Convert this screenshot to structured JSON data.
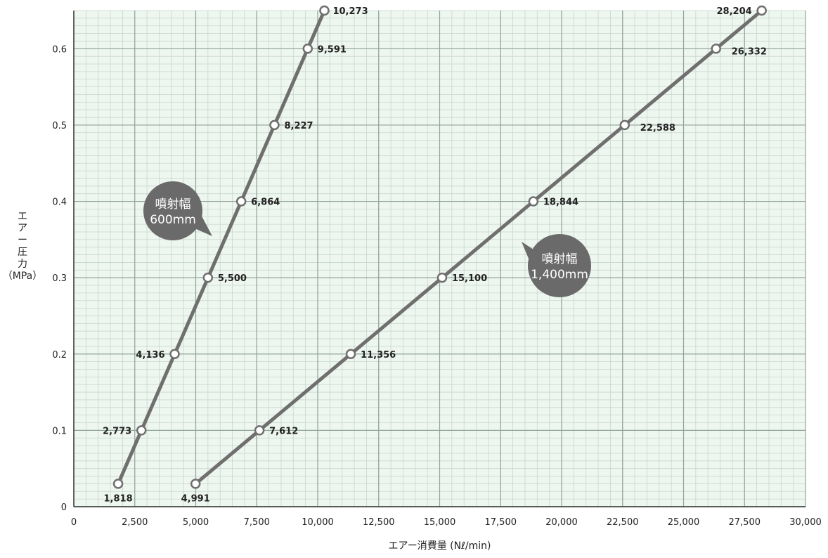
{
  "chart_data": {
    "type": "line",
    "xlabel": "エアー消費量 (Nℓ/min)",
    "ylabel_lines": [
      "エ",
      "ア",
      "ー",
      "圧",
      "力",
      "（MPa）"
    ],
    "xlim": [
      0,
      30000
    ],
    "ylim": [
      0,
      0.65
    ],
    "x_ticks": [
      0,
      2500,
      5000,
      7500,
      10000,
      12500,
      15000,
      17500,
      20000,
      22500,
      25000,
      27500,
      30000
    ],
    "x_tick_labels": [
      "0",
      "2,500",
      "5,000",
      "7,500",
      "10,000",
      "12,500",
      "15,000",
      "17,500",
      "20,000",
      "22,500",
      "25,000",
      "27,500",
      "30,000"
    ],
    "y_ticks": [
      0,
      0.1,
      0.2,
      0.3,
      0.4,
      0.5,
      0.6
    ],
    "y_tick_labels": [
      "0",
      "0.1",
      "0.2",
      "0.3",
      "0.4",
      "0.5",
      "0.6"
    ],
    "grid": true,
    "colors": {
      "line": "#6f6f6f",
      "grid_major": "#8fa39a",
      "grid_minor": "#c6d6cc",
      "background": "#eef6f0",
      "bubble": "#6a6a6a"
    },
    "series": [
      {
        "name": "噴射幅 600mm",
        "label_lines": [
          "噴射幅",
          "600mm"
        ],
        "points": [
          {
            "x": 1818,
            "y": 0.03,
            "label": "1,818"
          },
          {
            "x": 2773,
            "y": 0.1,
            "label": "2,773"
          },
          {
            "x": 4136,
            "y": 0.2,
            "label": "4,136"
          },
          {
            "x": 5500,
            "y": 0.3,
            "label": "5,500"
          },
          {
            "x": 6864,
            "y": 0.4,
            "label": "6,864"
          },
          {
            "x": 8227,
            "y": 0.5,
            "label": "8,227"
          },
          {
            "x": 9591,
            "y": 0.6,
            "label": "9,591"
          },
          {
            "x": 10273,
            "y": 0.65,
            "label": "10,273"
          }
        ]
      },
      {
        "name": "噴射幅 1,400mm",
        "label_lines": [
          "噴射幅",
          "1,400mm"
        ],
        "points": [
          {
            "x": 4991,
            "y": 0.03,
            "label": "4,991"
          },
          {
            "x": 7612,
            "y": 0.1,
            "label": "7,612"
          },
          {
            "x": 11356,
            "y": 0.2,
            "label": "11,356"
          },
          {
            "x": 15100,
            "y": 0.3,
            "label": "15,100"
          },
          {
            "x": 18844,
            "y": 0.4,
            "label": "18,844"
          },
          {
            "x": 22588,
            "y": 0.5,
            "label": "22,588"
          },
          {
            "x": 26332,
            "y": 0.6,
            "label": "26,332"
          },
          {
            "x": 28204,
            "y": 0.65,
            "label": "28,204"
          }
        ]
      }
    ]
  }
}
